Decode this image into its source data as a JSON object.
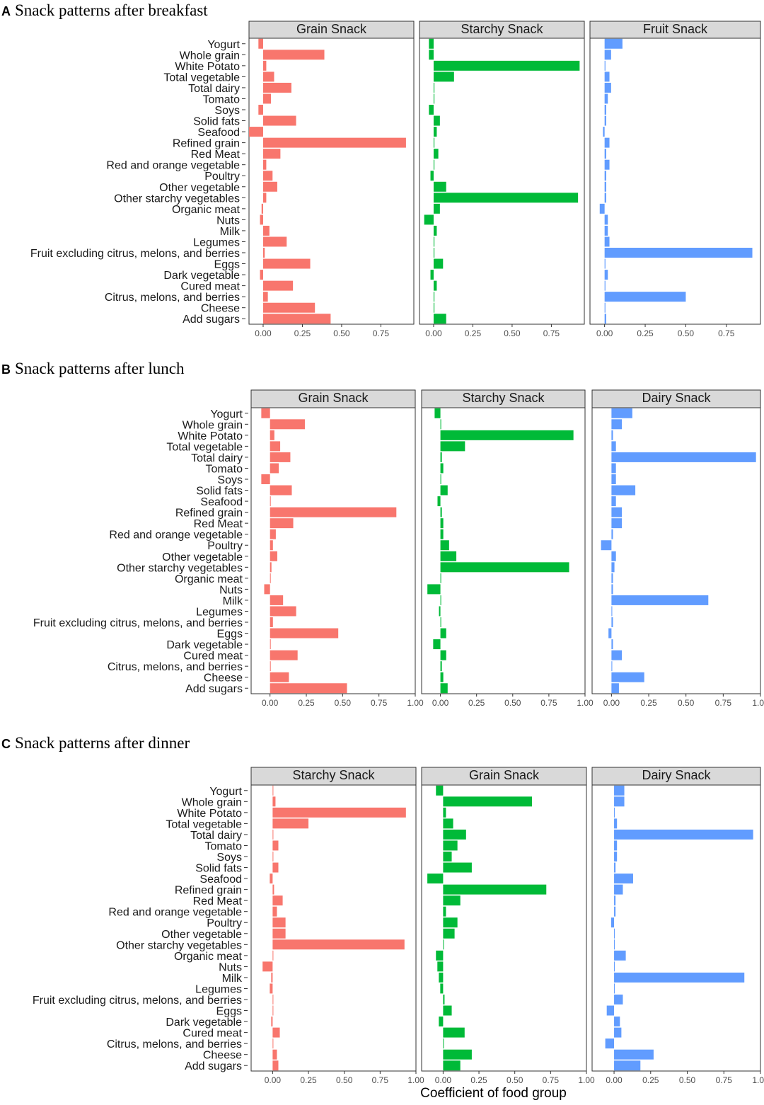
{
  "figure": {
    "x_axis_title": "Coefficient of food group",
    "colors": {
      "grain": "#F8766D",
      "starchy": "#00BA38",
      "third": "#619CFF",
      "strip": "#D9D9D9",
      "panel_border": "#333333"
    }
  },
  "chart_data": [
    {
      "type": "bar",
      "orientation": "horizontal",
      "letter": "A",
      "title": "Snack patterns after breakfast",
      "categories": [
        "Yogurt",
        "Whole grain",
        "White Potato",
        "Total vegetable",
        "Total dairy",
        "Tomato",
        "Soys",
        "Solid fats",
        "Seafood",
        "Refined grain",
        "Red Meat",
        "Red and orange vegetable",
        "Poultry",
        "Other vegetable",
        "Other starchy vegetables",
        "Organic meat",
        "Nuts",
        "Milk",
        "Legumes",
        "Fruit excluding citrus, melons, and berries",
        "Eggs",
        "Dark vegetable",
        "Cured meat",
        "Citrus, melons, and berries",
        "Cheese",
        "Add sugars"
      ],
      "xlim": [
        -0.09,
        0.96
      ],
      "ticks": [
        0,
        0.25,
        0.5,
        0.75
      ],
      "tick_labels": [
        "0.00",
        "0.25",
        "0.50",
        "0.75"
      ],
      "series": [
        {
          "name": "Grain Snack",
          "color": "#F8766D",
          "values": [
            -0.03,
            0.39,
            0.02,
            0.07,
            0.18,
            0.05,
            -0.03,
            0.21,
            -0.09,
            0.91,
            0.11,
            0.02,
            0.06,
            0.09,
            0.02,
            -0.01,
            -0.02,
            0.04,
            0.15,
            0.01,
            0.3,
            -0.02,
            0.19,
            0.03,
            0.33,
            0.43
          ]
        },
        {
          "name": "Starchy Snack",
          "color": "#00BA38",
          "values": [
            -0.03,
            -0.03,
            0.93,
            0.13,
            0.005,
            0.005,
            -0.03,
            0.04,
            0.02,
            0.005,
            0.03,
            0.005,
            -0.02,
            0.08,
            0.92,
            0.04,
            -0.06,
            0.02,
            0.005,
            0.005,
            0.06,
            -0.02,
            0.02,
            0.005,
            0.005,
            0.08
          ]
        },
        {
          "name": "Fruit Snack",
          "color": "#619CFF",
          "values": [
            0.11,
            0.04,
            0.005,
            0.03,
            0.04,
            0.02,
            0.01,
            0.01,
            -0.01,
            0.03,
            0.01,
            0.03,
            0.01,
            0.01,
            0.01,
            -0.03,
            0.02,
            0.02,
            0.03,
            0.91,
            0.005,
            0.02,
            0.005,
            0.5,
            0.005,
            0.01
          ]
        }
      ]
    },
    {
      "type": "bar",
      "orientation": "horizontal",
      "letter": "B",
      "title": "Snack patterns after lunch",
      "categories": [
        "Yogurt",
        "Whole grain",
        "White Potato",
        "Total vegetable",
        "Total dairy",
        "Tomato",
        "Soys",
        "Solid fats",
        "Seafood",
        "Refined grain",
        "Red Meat",
        "Red and orange vegetable",
        "Poultry",
        "Other vegetable",
        "Other starchy vegetables",
        "Organic meat",
        "Nuts",
        "Milk",
        "Legumes",
        "Fruit excluding citrus, melons, and berries",
        "Eggs",
        "Dark vegetable",
        "Cured meat",
        "Citrus, melons, and berries",
        "Cheese",
        "Add sugars"
      ],
      "xlim": [
        -0.13,
        1.0
      ],
      "ticks": [
        0,
        0.25,
        0.5,
        0.75,
        1.0
      ],
      "tick_labels": [
        "0.00",
        "0.25",
        "0.50",
        "0.75",
        "1.00"
      ],
      "series": [
        {
          "name": "Grain Snack",
          "color": "#F8766D",
          "values": [
            -0.06,
            0.24,
            0.03,
            0.07,
            0.14,
            0.06,
            -0.06,
            0.15,
            0.005,
            0.87,
            0.16,
            0.04,
            0.02,
            0.05,
            0.01,
            0.005,
            -0.04,
            0.09,
            0.18,
            0.02,
            0.47,
            0.005,
            0.19,
            0.005,
            0.13,
            0.53
          ]
        },
        {
          "name": "Starchy Snack",
          "color": "#00BA38",
          "values": [
            -0.04,
            0.005,
            0.92,
            0.17,
            0.01,
            0.02,
            0.005,
            0.05,
            -0.02,
            0.01,
            0.02,
            0.02,
            0.06,
            0.11,
            0.89,
            0.005,
            -0.09,
            0.005,
            -0.01,
            0.005,
            0.04,
            -0.05,
            0.04,
            0.01,
            0.02,
            0.05
          ]
        },
        {
          "name": "Dairy Snack",
          "color": "#619CFF",
          "values": [
            0.14,
            0.07,
            0.01,
            0.03,
            0.97,
            0.03,
            0.03,
            0.16,
            0.03,
            0.07,
            0.07,
            0.01,
            -0.07,
            0.03,
            0.02,
            0.01,
            0.01,
            0.65,
            0.005,
            0.01,
            -0.02,
            0.01,
            0.07,
            0.005,
            0.22,
            0.05
          ]
        }
      ]
    },
    {
      "type": "bar",
      "orientation": "horizontal",
      "letter": "C",
      "title": "Snack patterns after dinner",
      "categories": [
        "Yogurt",
        "Whole grain",
        "White Potato",
        "Total vegetable",
        "Total dairy",
        "Tomato",
        "Soys",
        "Solid fats",
        "Seafood",
        "Refined grain",
        "Red Meat",
        "Red and orange vegetable",
        "Poultry",
        "Other vegetable",
        "Other starchy vegetables",
        "Organic meat",
        "Nuts",
        "Milk",
        "Legumes",
        "Fruit excluding citrus, melons, and berries",
        "Eggs",
        "Dark vegetable",
        "Cured meat",
        "Citrus, melons, and berries",
        "Cheese",
        "Add sugars"
      ],
      "xlim": [
        -0.15,
        1.0
      ],
      "ticks": [
        0,
        0.25,
        0.5,
        0.75,
        1.0
      ],
      "tick_labels": [
        "0.00",
        "0.25",
        "0.50",
        "0.75",
        "1.00"
      ],
      "series": [
        {
          "name": "Starchy Snack",
          "color": "#F8766D",
          "values": [
            0.005,
            0.02,
            0.93,
            0.25,
            0.005,
            0.04,
            0.005,
            0.04,
            -0.02,
            0.01,
            0.07,
            0.03,
            0.09,
            0.09,
            0.92,
            0.005,
            -0.07,
            -0.01,
            -0.02,
            0.005,
            0.005,
            -0.01,
            0.05,
            0.005,
            0.03,
            0.04
          ]
        },
        {
          "name": "Grain Snack",
          "color": "#00BA38",
          "values": [
            -0.05,
            0.62,
            0.02,
            0.07,
            0.16,
            0.1,
            0.06,
            0.2,
            -0.11,
            0.72,
            0.12,
            0.02,
            0.1,
            0.08,
            0.005,
            -0.05,
            -0.04,
            -0.03,
            -0.02,
            0.01,
            0.06,
            -0.03,
            0.15,
            0.005,
            0.2,
            0.12
          ]
        },
        {
          "name": "Dairy Snack",
          "color": "#619CFF",
          "values": [
            0.07,
            0.07,
            0.005,
            0.02,
            0.95,
            0.02,
            0.02,
            0.01,
            0.13,
            0.06,
            0.01,
            0.01,
            -0.02,
            0.005,
            0.005,
            0.08,
            0.005,
            0.89,
            0.005,
            0.06,
            -0.05,
            0.04,
            0.05,
            -0.06,
            0.27,
            0.18
          ]
        }
      ]
    }
  ]
}
